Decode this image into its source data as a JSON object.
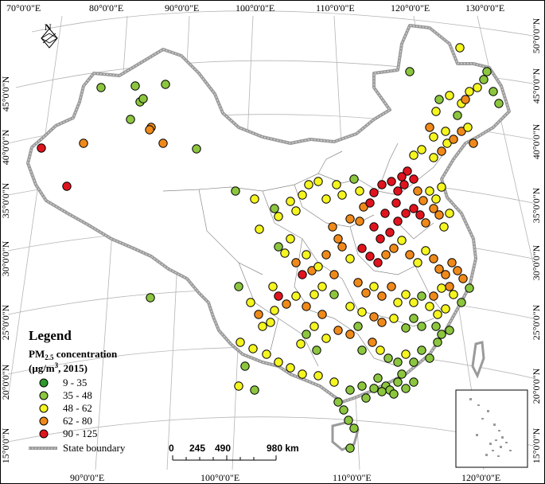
{
  "top_lon_labels": [
    "70°0'0\"E",
    "80°0'0\"E",
    "90°0'0\"E",
    "100°0'0\"E",
    "110°0'0\"E",
    "120°0'0\"E",
    "130°0'0\"E"
  ],
  "bottom_lon_labels": [
    "90°0'0\"E",
    "100°0'0\"E",
    "110°0'0\"E",
    "120°0'0\"E"
  ],
  "left_lat_labels": [
    "45°0'0\"N",
    "40°0'0\"N",
    "35°0'0\"N",
    "30°0'0\"N",
    "25°0'0\"N",
    "20°0'0\"N",
    "15°0'0\"N"
  ],
  "right_lat_labels": [
    "50°0'0\"N",
    "45°0'0\"N",
    "40°0'0\"N",
    "35°0'0\"N",
    "30°0'0\"N",
    "25°0'0\"N",
    "20°0'0\"N",
    "15°0'0\"N"
  ],
  "north_label": "N",
  "legend": {
    "title": "Legend",
    "subtitle_main": "PM",
    "subtitle_sub": "2.5",
    "subtitle_rest": " concentration",
    "unit_pre": "(μg/m",
    "unit_sup": "3",
    "unit_post": ", 2015)",
    "classes": [
      {
        "label": "9 - 35",
        "color": "#2e9a2e"
      },
      {
        "label": "35 - 48",
        "color": "#8cc63f"
      },
      {
        "label": "48 - 62",
        "color": "#f5f520"
      },
      {
        "label": "62 - 80",
        "color": "#ef8a1a"
      },
      {
        "label": "90 - 125",
        "color": "#e0141e"
      }
    ],
    "boundary_label": "State boundary"
  },
  "scale_bar": {
    "labels": [
      "0",
      "245",
      "490",
      "980 km"
    ]
  },
  "colors": {
    "boundary": "#9a9a9a",
    "province": "#8a8a8a",
    "graticule": "#b0b0b0"
  }
}
